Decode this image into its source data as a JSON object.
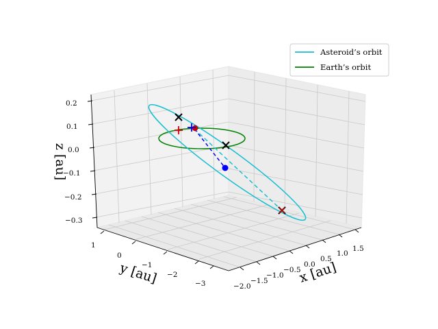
{
  "chart_data": {
    "type": "line",
    "projection": "3d",
    "xlabel": "x [au]",
    "ylabel": "y [au]",
    "zlabel": "z [au]",
    "xlim": [
      -2.1,
      1.8
    ],
    "ylim": [
      -3.6,
      1.3
    ],
    "zlim": [
      -0.35,
      0.25
    ],
    "xticks": [
      "−2.0",
      "−1.5",
      "−1.0",
      "−0.5",
      "0.0",
      "0.5",
      "1.0",
      "1.5"
    ],
    "yticks": [
      "1",
      "0",
      "−1",
      "−2",
      "−3"
    ],
    "zticks": [
      "0.2",
      "0.1",
      "0.0",
      "−0.1",
      "−0.2",
      "−0.3"
    ],
    "legend": {
      "location": "upper right",
      "entries": [
        {
          "label": "Asteroid’s orbit",
          "color": "#17becf"
        },
        {
          "label": "Earth’s orbit",
          "color": "#008000"
        }
      ]
    },
    "series": [
      {
        "name": "Asteroid’s orbit",
        "kind": "ellipse",
        "color": "#17becf",
        "semi_major_axis_au": 2.0,
        "eccentricity": 0.53,
        "inclination_deg": 6.0
      },
      {
        "name": "Earth’s orbit",
        "kind": "circle",
        "color": "#008000",
        "radius_au": 1.0,
        "inclination_deg": 0.0
      }
    ],
    "markers": [
      {
        "label": "x marker 1",
        "symbol": "x",
        "color": "#000000"
      },
      {
        "label": "x marker 2",
        "symbol": "x",
        "color": "#000000"
      },
      {
        "label": "x marker 3",
        "symbol": "x",
        "color": "#000000"
      },
      {
        "label": "red x marker",
        "symbol": "x",
        "color": "#cc0000"
      },
      {
        "label": "red plus marker",
        "symbol": "+",
        "color": "#cc0000"
      },
      {
        "label": "red dot marker",
        "symbol": "o",
        "color": "#cc0000"
      },
      {
        "label": "blue plus marker",
        "symbol": "+",
        "color": "#0000ff"
      },
      {
        "label": "blue dot marker",
        "symbol": "o",
        "color": "#0000ff"
      }
    ],
    "connecting_lines": [
      {
        "name": "blue dashed segment",
        "color": "#0000ff",
        "style": "dashed"
      },
      {
        "name": "cyan dashed segment",
        "color": "#17becf",
        "style": "dashed"
      }
    ]
  }
}
